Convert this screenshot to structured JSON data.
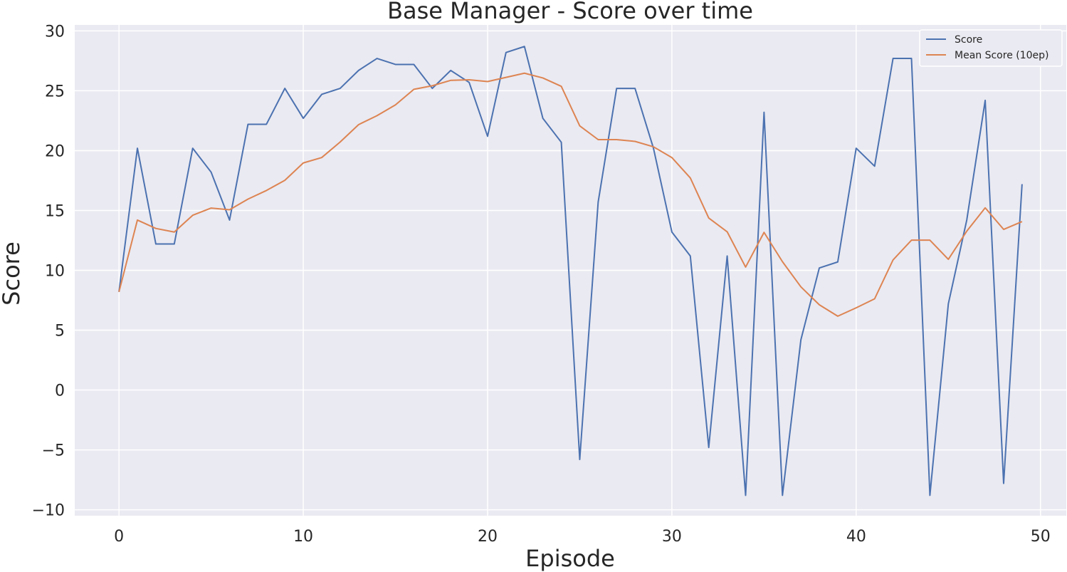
{
  "chart_data": {
    "type": "line",
    "title": "Base Manager - Score over time",
    "xlabel": "Episode",
    "ylabel": "Score",
    "xlim": [
      -2.4,
      51.4
    ],
    "ylim": [
      -10.5,
      30.5
    ],
    "xticks": [
      0,
      10,
      20,
      30,
      40,
      50
    ],
    "yticks": [
      -10,
      -5,
      0,
      5,
      10,
      15,
      20,
      25,
      30
    ],
    "grid": true,
    "legend_position": "top-right",
    "series": [
      {
        "name": "Score",
        "color": "#4c72b0",
        "x": [
          0,
          1,
          2,
          3,
          4,
          5,
          6,
          7,
          8,
          9,
          10,
          11,
          12,
          13,
          14,
          15,
          16,
          17,
          18,
          19,
          20,
          21,
          22,
          23,
          24,
          25,
          26,
          27,
          28,
          29,
          30,
          31,
          32,
          33,
          34,
          35,
          36,
          37,
          38,
          39,
          40,
          41,
          42,
          43,
          44,
          45,
          46,
          47,
          48,
          49
        ],
        "values": [
          8.2,
          20.2,
          12.2,
          12.2,
          20.2,
          18.2,
          14.2,
          22.2,
          22.2,
          25.2,
          22.7,
          24.7,
          25.2,
          26.7,
          27.7,
          27.2,
          27.2,
          25.2,
          26.7,
          25.7,
          21.2,
          28.2,
          28.7,
          22.7,
          20.7,
          -5.8,
          15.7,
          25.2,
          25.2,
          20.2,
          13.2,
          11.2,
          -4.8,
          11.2,
          -8.8,
          23.2,
          -8.8,
          4.2,
          10.2,
          10.7,
          20.2,
          18.7,
          27.7,
          27.7,
          -8.8,
          7.2,
          14.2,
          24.2,
          -7.8,
          17.2
        ]
      },
      {
        "name": "Mean Score (10ep)",
        "color": "#dd8452",
        "x": [
          0,
          1,
          2,
          3,
          4,
          5,
          6,
          7,
          8,
          9,
          10,
          11,
          12,
          13,
          14,
          15,
          16,
          17,
          18,
          19,
          20,
          21,
          22,
          23,
          24,
          25,
          26,
          27,
          28,
          29,
          30,
          31,
          32,
          33,
          34,
          35,
          36,
          37,
          38,
          39,
          40,
          41,
          42,
          43,
          44,
          45,
          46,
          47,
          48,
          49
        ],
        "values": [
          8.2,
          14.2,
          13.5,
          13.2,
          14.6,
          15.2,
          15.06,
          15.95,
          16.67,
          17.52,
          18.97,
          19.42,
          20.72,
          22.17,
          22.92,
          23.82,
          25.12,
          25.42,
          25.87,
          25.92,
          25.77,
          26.12,
          26.47,
          26.07,
          25.37,
          22.07,
          20.92,
          20.92,
          20.77,
          20.32,
          19.42,
          17.72,
          14.37,
          13.22,
          10.27,
          13.17,
          10.72,
          8.62,
          7.12,
          6.17,
          6.87,
          7.62,
          10.87,
          12.52,
          12.52,
          10.92,
          13.27,
          15.22,
          13.42,
          14.07
        ]
      }
    ]
  }
}
